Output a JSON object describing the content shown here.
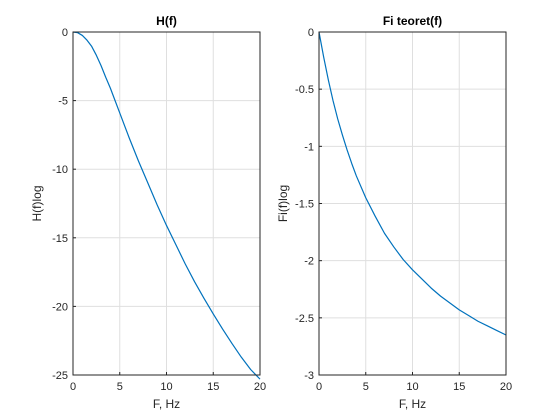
{
  "chart_data": [
    {
      "type": "line",
      "title": "H(f)",
      "xlabel": "F, Hz",
      "ylabel": "H(f)log",
      "xlim": [
        0,
        20
      ],
      "ylim": [
        -25,
        0
      ],
      "xticks": [
        0,
        5,
        10,
        15,
        20
      ],
      "yticks": [
        -25,
        -20,
        -15,
        -10,
        -5,
        0
      ],
      "xtick_labels": [
        "0",
        "5",
        "10",
        "15",
        "20"
      ],
      "ytick_labels": [
        "-25",
        "-20",
        "-15",
        "-10",
        "-5",
        "0"
      ],
      "grid": true,
      "series": [
        {
          "color": "#0072BD",
          "x": [
            0,
            0.5,
            1,
            1.5,
            2,
            2.5,
            3,
            3.5,
            4,
            4.5,
            5,
            6,
            7,
            8,
            9,
            10,
            11,
            12,
            13,
            14,
            15,
            16,
            17,
            18,
            19,
            20
          ],
          "y": [
            0,
            -0.05,
            -0.25,
            -0.6,
            -1.05,
            -1.7,
            -2.45,
            -3.3,
            -4.1,
            -5.0,
            -5.9,
            -7.7,
            -9.4,
            -11.0,
            -12.6,
            -14.1,
            -15.5,
            -16.9,
            -18.2,
            -19.4,
            -20.55,
            -21.65,
            -22.7,
            -23.7,
            -24.6,
            -25.3
          ]
        }
      ]
    },
    {
      "type": "line",
      "title": "Fi teoret(f)",
      "xlabel": "F, Hz",
      "ylabel": "Fi(f)log",
      "xlim": [
        0,
        20
      ],
      "ylim": [
        -3,
        0
      ],
      "xticks": [
        0,
        5,
        10,
        15,
        20
      ],
      "yticks": [
        -3,
        -2.5,
        -2,
        -1.5,
        -1,
        -0.5,
        0
      ],
      "xtick_labels": [
        "0",
        "5",
        "10",
        "15",
        "20"
      ],
      "ytick_labels": [
        "-3",
        "-2.5",
        "-2",
        "-1.5",
        "-1",
        "-0.5",
        "0"
      ],
      "grid": true,
      "series": [
        {
          "color": "#0072BD",
          "x": [
            0,
            0.5,
            1,
            1.5,
            2,
            2.5,
            3,
            3.5,
            4,
            5,
            6,
            7,
            8,
            9,
            10,
            11,
            12,
            13,
            14,
            15,
            16,
            17,
            18,
            19,
            20
          ],
          "y": [
            0,
            -0.22,
            -0.42,
            -0.6,
            -0.76,
            -0.9,
            -1.03,
            -1.15,
            -1.26,
            -1.45,
            -1.61,
            -1.76,
            -1.88,
            -1.99,
            -2.08,
            -2.16,
            -2.24,
            -2.31,
            -2.37,
            -2.43,
            -2.48,
            -2.53,
            -2.57,
            -2.61,
            -2.65
          ]
        }
      ]
    }
  ]
}
